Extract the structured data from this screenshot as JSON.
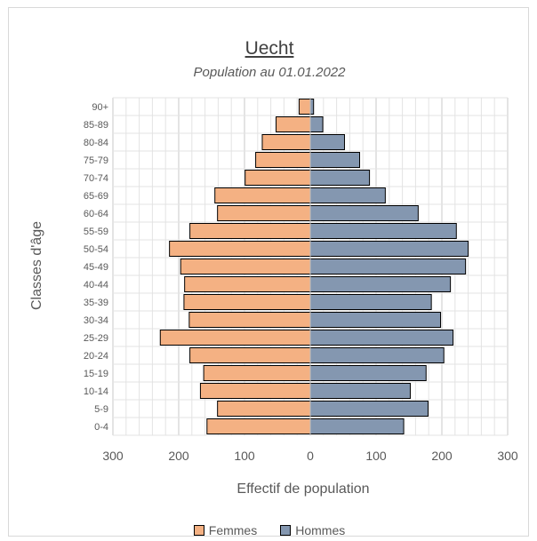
{
  "chart_data": {
    "type": "bar",
    "orientation": "horizontal",
    "title": "Uecht",
    "subtitle": "Population au 01.01.2022",
    "xlabel": "Effectif de population",
    "ylabel": "Classes d'âge",
    "xlim": [
      -300,
      300
    ],
    "x_ticks": [
      "300",
      "200",
      "100",
      "0",
      "100",
      "200",
      "300"
    ],
    "grid": true,
    "legend_position": "bottom",
    "categories": [
      "0-4",
      "5-9",
      "10-14",
      "15-19",
      "20-24",
      "25-29",
      "30-34",
      "35-39",
      "40-44",
      "45-49",
      "50-54",
      "55-59",
      "60-64",
      "65-69",
      "70-74",
      "75-79",
      "80-84",
      "85-89",
      "90+"
    ],
    "series": [
      {
        "name": "Femmes",
        "color": "#F4B183",
        "values": [
          157,
          141,
          167,
          162,
          183,
          228,
          184,
          192,
          191,
          197,
          214,
          183,
          141,
          145,
          99,
          83,
          73,
          52,
          17
        ]
      },
      {
        "name": "Hommes",
        "color": "#8497B0",
        "values": [
          142,
          179,
          152,
          176,
          203,
          217,
          198,
          184,
          213,
          236,
          240,
          222,
          164,
          114,
          90,
          75,
          52,
          19,
          5
        ]
      }
    ]
  }
}
